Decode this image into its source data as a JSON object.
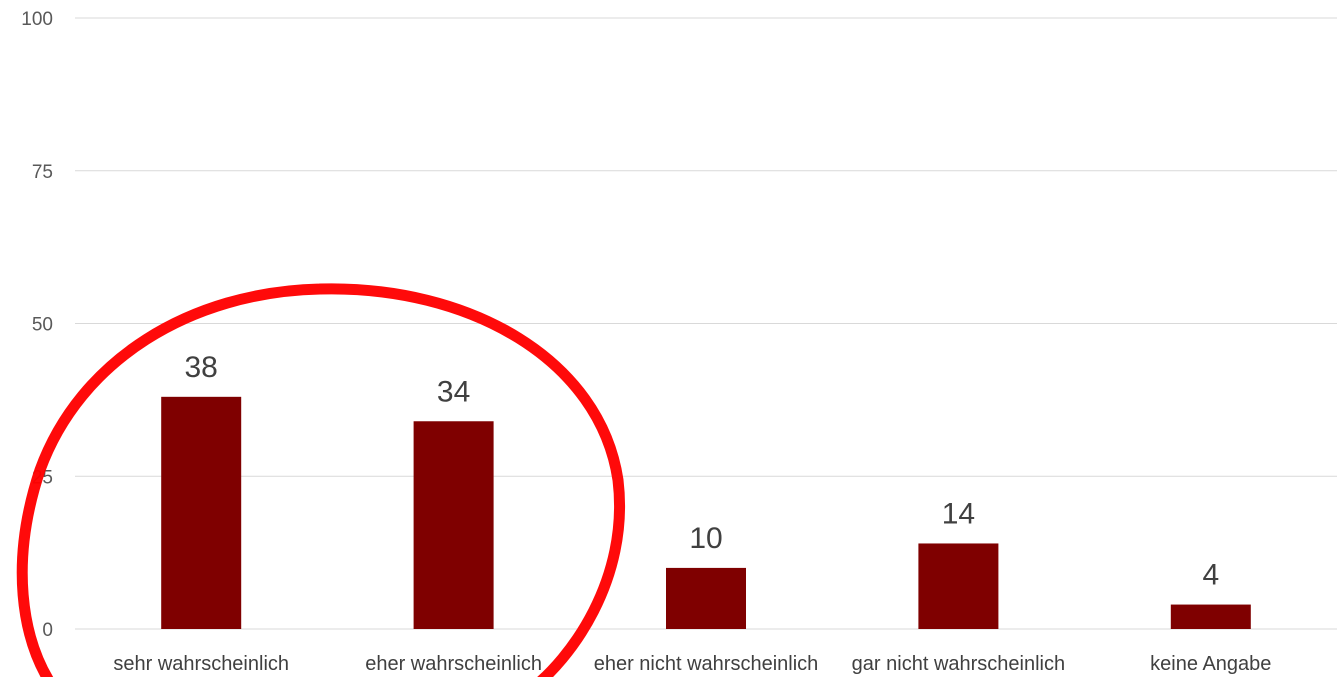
{
  "chart_data": {
    "type": "bar",
    "categories": [
      "sehr wahrscheinlich",
      "eher wahrscheinlich",
      "eher nicht wahrscheinlich",
      "gar nicht wahrscheinlich",
      "keine Angabe"
    ],
    "values": [
      38,
      34,
      10,
      14,
      4
    ],
    "data_labels": [
      "38",
      "34",
      "10",
      "14",
      "4"
    ],
    "yticks": [
      "0",
      "25",
      "50",
      "75",
      "100"
    ],
    "ylim": [
      0,
      100
    ],
    "grid": true,
    "bar_color": "#7f0000",
    "gridline_color": "#d9d9d9",
    "annotation": {
      "shape": "circle",
      "color": "#ff0000",
      "encloses": [
        "sehr wahrscheinlich",
        "eher wahrscheinlich"
      ]
    }
  }
}
